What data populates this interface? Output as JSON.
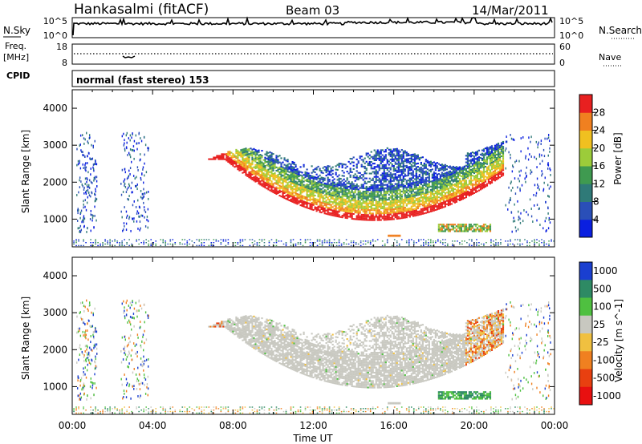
{
  "header": {
    "station": "Hankasalmi (fitACF)",
    "beam": "Beam 03",
    "date": "14/Mar/2011"
  },
  "noise_panel": {
    "left_label": "N.Sky",
    "right_label": "N.Search",
    "left_ticks": [
      "10^5",
      "10^0"
    ],
    "right_ticks": [
      "10^5",
      "10^0"
    ]
  },
  "freq_panel": {
    "left_label": "Freq.",
    "left_unit": "[MHz]",
    "right_label": "Nave",
    "left_ticks": [
      "18",
      "8"
    ],
    "right_ticks": [
      "60",
      "0"
    ]
  },
  "cpid": {
    "label": "CPID",
    "mode": "normal (fast stereo) 153"
  },
  "chart_data": [
    {
      "type": "heatmap",
      "title": "",
      "ylabel": "Slant Range [km]",
      "xlabel": "Time UT",
      "x_ticks": [
        "00:00",
        "04:00",
        "08:00",
        "12:00",
        "16:00",
        "20:00",
        "00:00"
      ],
      "y_ticks": [
        1000,
        2000,
        3000,
        4000
      ],
      "ylim": [
        250,
        4500
      ],
      "xlim_hours": [
        0,
        24
      ],
      "colorbar": {
        "label": "Power [dB]",
        "ticks": [
          4,
          8,
          12,
          16,
          20,
          24,
          28
        ],
        "range": [
          0,
          32
        ],
        "colors": [
          "#0a1fe0",
          "#2a4fb8",
          "#2f7a78",
          "#3f9a50",
          "#9ccc3a",
          "#f0c020",
          "#f08020",
          "#e82020"
        ]
      }
    },
    {
      "type": "heatmap",
      "title": "",
      "ylabel": "Slant Range [km]",
      "xlabel": "Time UT",
      "x_ticks": [
        "00:00",
        "04:00",
        "08:00",
        "12:00",
        "16:00",
        "20:00",
        "00:00"
      ],
      "y_ticks": [
        1000,
        2000,
        3000,
        4000
      ],
      "ylim": [
        250,
        4500
      ],
      "xlim_hours": [
        0,
        24
      ],
      "colorbar": {
        "label": "Velocity [m s^-1]",
        "ticks": [
          "1000",
          "500",
          "100",
          "25",
          "-25",
          "-100",
          "-500",
          "-1000"
        ],
        "colors": [
          "#1a3fd0",
          "#2e8a64",
          "#4fc040",
          "#c8c8c0",
          "#f0c040",
          "#f08020",
          "#e84010",
          "#e81010"
        ]
      }
    }
  ],
  "colors": {
    "frame": "#000000",
    "ground_gray": "#c8c8c0"
  }
}
